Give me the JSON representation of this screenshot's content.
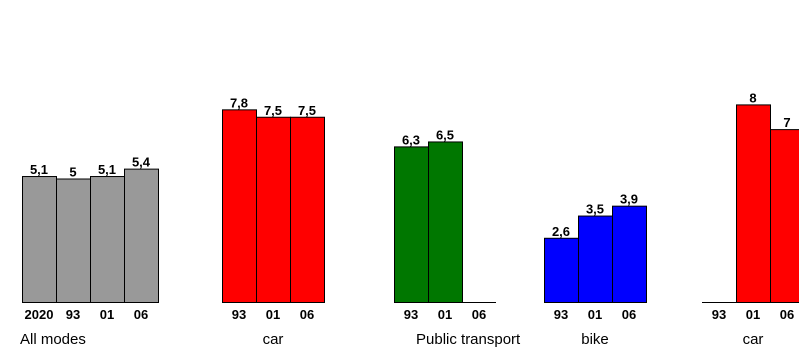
{
  "chart_data": [
    {
      "type": "bar",
      "group_label": "All modes",
      "categories": [
        "2020",
        "93",
        "01",
        "06"
      ],
      "values": [
        5.1,
        5,
        5.1,
        5.4
      ],
      "value_labels": [
        "5,1",
        "5",
        "5,1",
        "5,4"
      ],
      "color": "#999999"
    },
    {
      "type": "bar",
      "group_label": "car",
      "categories": [
        "93",
        "01",
        "06"
      ],
      "values": [
        7.8,
        7.5,
        7.5
      ],
      "value_labels": [
        "7,8",
        "7,5",
        "7,5"
      ],
      "color": "#ff0000"
    },
    {
      "type": "bar",
      "group_label": "Public transport",
      "categories": [
        "93",
        "01",
        "06"
      ],
      "values": [
        6.3,
        6.5,
        null
      ],
      "value_labels": [
        "6,3",
        "6,5",
        ""
      ],
      "color": "#007700"
    },
    {
      "type": "bar",
      "group_label": "bike",
      "categories": [
        "93",
        "01",
        "06"
      ],
      "values": [
        2.6,
        3.5,
        3.9
      ],
      "value_labels": [
        "2,6",
        "3,5",
        "3,9"
      ],
      "color": "#0000ff"
    },
    {
      "type": "bar",
      "group_label": "car",
      "categories": [
        "93",
        "01",
        "06"
      ],
      "values": [
        null,
        8,
        7
      ],
      "value_labels": [
        "",
        "8",
        "7"
      ],
      "color": "#ff0000"
    }
  ]
}
